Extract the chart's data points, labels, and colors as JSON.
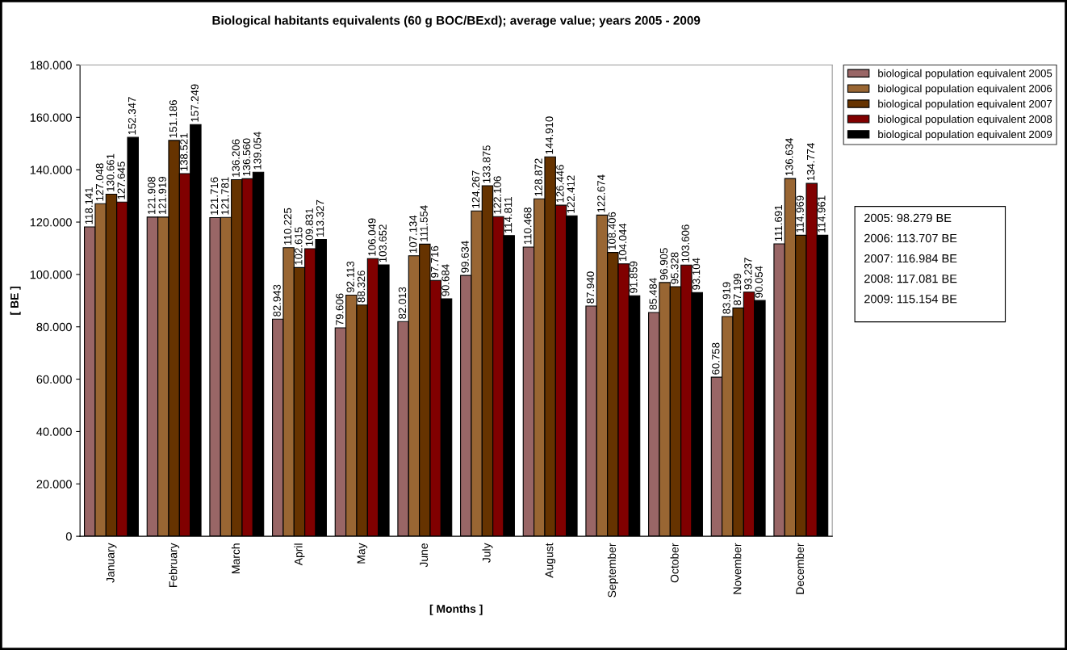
{
  "chart_data": {
    "type": "bar",
    "title": "Biological habitants equivalents (60 g BOC/BExd); average value; years 2005 - 2009",
    "xlabel": "[ Months ]",
    "ylabel": "[ BE ]",
    "categories": [
      "January",
      "February",
      "March",
      "April",
      "May",
      "June",
      "July",
      "August",
      "September",
      "October",
      "November",
      "December"
    ],
    "series": [
      {
        "name": "biological population equivalent 2005",
        "color": "#996666",
        "values": [
          118141,
          121908,
          121716,
          82943,
          79606,
          82013,
          99634,
          110468,
          87940,
          85484,
          60758,
          111691
        ],
        "value_labels": [
          "118.141",
          "121.908",
          "121.716",
          "82.943",
          "79.606",
          "82.013",
          "99.634",
          "110.468",
          "87.940",
          "85.484",
          "60.758",
          "111.691"
        ]
      },
      {
        "name": "biological population equivalent 2006",
        "color": "#996633",
        "values": [
          127048,
          121919,
          121781,
          110225,
          92113,
          107134,
          124267,
          128872,
          122674,
          96905,
          83919,
          136634
        ],
        "value_labels": [
          "127.048",
          "121.919",
          "121.781",
          "110.225",
          "92.113",
          "107.134",
          "124.267",
          "128.872",
          "122.674",
          "96.905",
          "83.919",
          "136.634"
        ]
      },
      {
        "name": "biological population equivalent 2007",
        "color": "#663300",
        "values": [
          130661,
          151186,
          136206,
          102615,
          88326,
          111554,
          133875,
          144910,
          108406,
          95328,
          87199,
          114969
        ],
        "value_labels": [
          "130.661",
          "151.186",
          "136.206",
          "102.615",
          "88.326",
          "111.554",
          "133.875",
          "144.910",
          "108.406",
          "95.328",
          "87.199",
          "114.969"
        ]
      },
      {
        "name": "biological population equivalent 2008",
        "color": "#800000",
        "values": [
          127645,
          138521,
          136560,
          109831,
          106049,
          97716,
          122106,
          126446,
          104044,
          103606,
          93237,
          134774
        ],
        "value_labels": [
          "127.645",
          "138.521",
          "136.560",
          "109.831",
          "106.049",
          "97.716",
          "122.106",
          "126.446",
          "104.044",
          "103.606",
          "93.237",
          "134.774"
        ]
      },
      {
        "name": "biological population equivalent 2009",
        "color": "#000000",
        "values": [
          152347,
          157249,
          139054,
          113327,
          103652,
          90684,
          114811,
          122412,
          91859,
          93104,
          90054,
          114961
        ],
        "value_labels": [
          "152.347",
          "157.249",
          "139.054",
          "113.327",
          "103.652",
          "90.684",
          "114.811",
          "122.412",
          "91.859",
          "93.104",
          "90.054",
          "114.961"
        ]
      }
    ],
    "ylim": [
      0,
      180000
    ],
    "yticks": [
      0,
      {
        "value": 20000,
        "label": "20.000"
      },
      {
        "value": 40000,
        "label": "40.000"
      },
      {
        "value": 60000,
        "label": "60.000"
      },
      {
        "value": 80000,
        "label": "80.000"
      },
      {
        "value": 100000,
        "label": "100.000"
      },
      {
        "value": 120000,
        "label": "120.000"
      },
      {
        "value": 140000,
        "label": "140.000"
      },
      {
        "value": 160000,
        "label": "160.000"
      },
      {
        "value": 180000,
        "label": "180.000"
      }
    ],
    "legend": "right",
    "annotations": [
      "2005: 98.279 BE",
      "2006: 113.707 BE",
      "2007: 116.984 BE",
      "2008: 117.081 BE",
      "2009: 115.154 BE"
    ]
  }
}
